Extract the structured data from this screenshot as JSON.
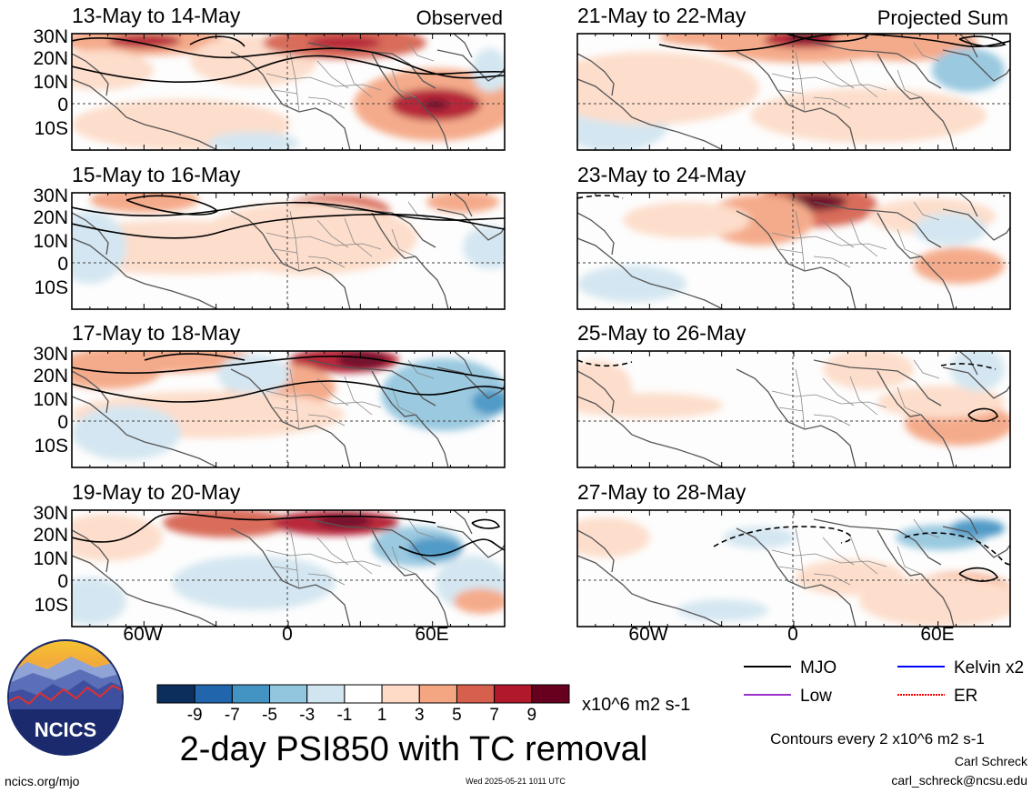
{
  "panels": [
    {
      "date": "13-May to 14-May",
      "tag": "Observed"
    },
    {
      "date": "15-May to 16-May",
      "tag": ""
    },
    {
      "date": "17-May to 18-May",
      "tag": ""
    },
    {
      "date": "19-May to 20-May",
      "tag": ""
    },
    {
      "date": "21-May to 22-May",
      "tag": "Projected Sum"
    },
    {
      "date": "23-May to 24-May",
      "tag": ""
    },
    {
      "date": "25-May to 26-May",
      "tag": ""
    },
    {
      "date": "27-May to 28-May",
      "tag": ""
    }
  ],
  "lat_labels": [
    "30N",
    "20N",
    "10N",
    "0",
    "10S"
  ],
  "lon_labels": [
    "60W",
    "0",
    "60E"
  ],
  "colorbar": {
    "ticks": [
      "-9",
      "-7",
      "-5",
      "-3",
      "-1",
      "1",
      "3",
      "5",
      "7",
      "9"
    ],
    "colors": [
      "#0c2e5c",
      "#2166ac",
      "#4393c3",
      "#92c5de",
      "#d1e5f0",
      "#ffffff",
      "#fddbc7",
      "#f4a582",
      "#d6604d",
      "#b2182b",
      "#67001f"
    ],
    "units": "x10^6 m2 s-1"
  },
  "legend": [
    {
      "label": "MJO",
      "color": "#000000"
    },
    {
      "label": "Kelvin x2",
      "color": "#0000ff"
    },
    {
      "label": "Low",
      "color": "#9933cc"
    },
    {
      "label": "ER",
      "color": "#ff0000"
    }
  ],
  "logo_text": "NCICS",
  "title": "2-day PSI850 with TC removal",
  "contours_note": "Contours every 2 x10^6 m2 s-1",
  "author": "Carl Schreck",
  "email": "carl_schreck@ncsu.edu",
  "website": "ncics.org/mjo",
  "timestamp": "Wed 2025-05-21 1011 UTC"
}
